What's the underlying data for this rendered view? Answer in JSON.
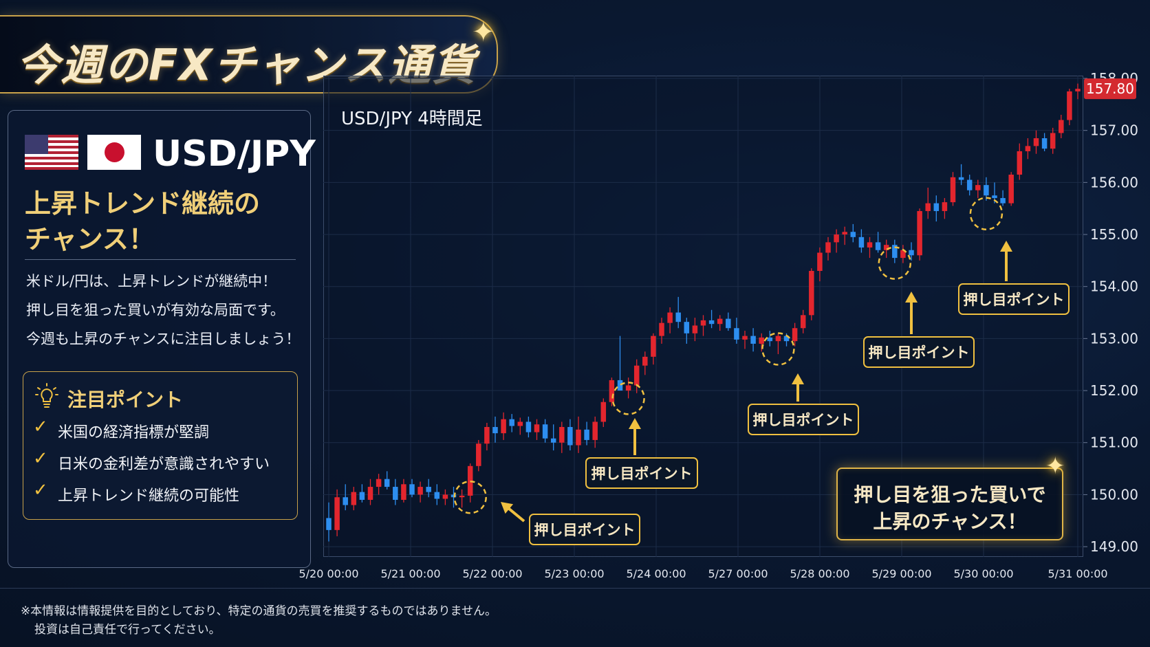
{
  "page": {
    "title": "今週のFXチャンス通貨"
  },
  "panel": {
    "pair": "USD/JPY",
    "headline_line1": "上昇トレンド継続の",
    "headline_line2": "チャンス！",
    "description": [
      "米ドル/円は、上昇トレンドが継続中！",
      "押し目を狙った買いが有効な局面です。",
      "今週も上昇のチャンスに注目しましょう！"
    ],
    "focus": {
      "title": "注目ポイント",
      "items": [
        "米国の経済指標が堅調",
        "日米の金利差が意識されやすい",
        "上昇トレンド継続の可能性"
      ]
    }
  },
  "callout": {
    "line1": "押し目を狙った買いで",
    "line2": "上昇のチャンス！"
  },
  "disclaimer": {
    "line1": "※本情報は情報提供を目的としており、特定の通貨の売買を推奨するものではありません。",
    "line2": "投資は自己責任で行ってください。"
  },
  "colors": {
    "up": "#e3262e",
    "down": "#2d8ef0",
    "gold": "#f0c040",
    "price_tag": "#d42a30"
  },
  "chart_data": {
    "type": "candlestick",
    "title": "USD/JPY 4時間足",
    "ylim": [
      148.75,
      158.0
    ],
    "yticks": [
      "158.00",
      "157.00",
      "156.00",
      "155.00",
      "154.00",
      "153.00",
      "152.00",
      "151.00",
      "150.00",
      "149.00"
    ],
    "ytick_values": [
      158,
      157,
      156,
      155,
      154,
      153,
      152,
      151,
      150,
      149
    ],
    "xticks": [
      "5/20 00:00",
      "5/21 00:00",
      "5/22 00:00",
      "5/23 00:00",
      "5/24 00:00",
      "5/27 00:00",
      "5/28 00:00",
      "5/29 00:00",
      "5/30 00:00",
      "5/31 00:00"
    ],
    "current_price": "157.80",
    "grid": true,
    "ohlc": [
      [
        149.55,
        149.85,
        149.1,
        149.32
      ],
      [
        149.32,
        150.1,
        149.2,
        149.95
      ],
      [
        149.95,
        150.2,
        149.7,
        149.8
      ],
      [
        149.8,
        150.15,
        149.7,
        150.05
      ],
      [
        150.05,
        150.2,
        149.85,
        149.9
      ],
      [
        149.9,
        150.3,
        149.8,
        150.15
      ],
      [
        150.15,
        150.4,
        150.0,
        150.3
      ],
      [
        150.3,
        150.45,
        150.1,
        150.15
      ],
      [
        150.15,
        150.3,
        149.8,
        149.9
      ],
      [
        149.9,
        150.3,
        149.85,
        150.2
      ],
      [
        150.2,
        150.3,
        149.95,
        150.0
      ],
      [
        150.0,
        150.25,
        149.85,
        150.15
      ],
      [
        150.15,
        150.3,
        149.95,
        150.05
      ],
      [
        150.05,
        150.2,
        149.8,
        149.92
      ],
      [
        149.92,
        150.1,
        149.8,
        150.0
      ],
      [
        150.0,
        150.15,
        149.75,
        149.95
      ],
      [
        149.95,
        150.1,
        149.75,
        149.98
      ],
      [
        149.98,
        150.6,
        149.85,
        150.55
      ],
      [
        150.55,
        151.05,
        150.45,
        150.98
      ],
      [
        150.98,
        151.38,
        150.85,
        151.3
      ],
      [
        151.3,
        151.5,
        151.0,
        151.18
      ],
      [
        151.18,
        151.58,
        151.05,
        151.45
      ],
      [
        151.45,
        151.55,
        151.2,
        151.32
      ],
      [
        151.32,
        151.48,
        151.15,
        151.4
      ],
      [
        151.4,
        151.5,
        151.1,
        151.2
      ],
      [
        151.2,
        151.45,
        151.05,
        151.35
      ],
      [
        151.35,
        151.45,
        151.0,
        151.08
      ],
      [
        151.08,
        151.35,
        150.85,
        151.0
      ],
      [
        151.0,
        151.4,
        150.8,
        151.3
      ],
      [
        151.3,
        151.45,
        150.85,
        150.95
      ],
      [
        150.95,
        151.5,
        150.8,
        151.25
      ],
      [
        151.25,
        151.4,
        150.95,
        151.05
      ],
      [
        151.05,
        151.5,
        150.9,
        151.4
      ],
      [
        151.4,
        151.85,
        151.3,
        151.78
      ],
      [
        151.78,
        152.25,
        151.7,
        152.2
      ],
      [
        152.2,
        153.05,
        152.0,
        152.0
      ],
      [
        152.0,
        152.25,
        151.85,
        152.1
      ],
      [
        152.1,
        152.6,
        151.95,
        152.48
      ],
      [
        152.48,
        152.75,
        152.3,
        152.65
      ],
      [
        152.65,
        153.1,
        152.5,
        153.05
      ],
      [
        153.05,
        153.4,
        152.9,
        153.3
      ],
      [
        153.3,
        153.6,
        153.1,
        153.5
      ],
      [
        153.5,
        153.8,
        153.2,
        153.32
      ],
      [
        153.32,
        153.4,
        152.9,
        153.1
      ],
      [
        153.1,
        153.4,
        152.95,
        153.25
      ],
      [
        153.25,
        153.45,
        153.05,
        153.35
      ],
      [
        153.35,
        153.55,
        153.2,
        153.28
      ],
      [
        153.28,
        153.45,
        153.15,
        153.38
      ],
      [
        153.38,
        153.5,
        153.15,
        153.2
      ],
      [
        153.2,
        153.4,
        152.9,
        152.98
      ],
      [
        152.98,
        153.15,
        152.8,
        153.05
      ],
      [
        153.05,
        153.2,
        152.75,
        152.9
      ],
      [
        152.9,
        153.1,
        152.75,
        153.02
      ],
      [
        153.02,
        153.15,
        152.85,
        152.95
      ],
      [
        152.95,
        153.1,
        152.7,
        153.05
      ],
      [
        153.05,
        153.1,
        152.85,
        152.95
      ],
      [
        152.95,
        153.3,
        152.85,
        153.2
      ],
      [
        153.2,
        153.55,
        153.1,
        153.45
      ],
      [
        153.45,
        154.35,
        153.35,
        154.3
      ],
      [
        154.3,
        154.75,
        154.1,
        154.65
      ],
      [
        154.65,
        154.95,
        154.5,
        154.85
      ],
      [
        154.85,
        155.1,
        154.65,
        155.0
      ],
      [
        155.0,
        155.15,
        154.8,
        155.05
      ],
      [
        155.05,
        155.2,
        154.85,
        154.95
      ],
      [
        154.95,
        155.1,
        154.65,
        154.75
      ],
      [
        154.75,
        154.95,
        154.55,
        154.85
      ],
      [
        154.85,
        155.05,
        154.65,
        154.7
      ],
      [
        154.7,
        154.9,
        154.55,
        154.8
      ],
      [
        154.8,
        154.9,
        154.45,
        154.55
      ],
      [
        154.55,
        154.8,
        154.45,
        154.7
      ],
      [
        154.7,
        154.85,
        154.5,
        154.6
      ],
      [
        154.6,
        155.5,
        154.5,
        155.45
      ],
      [
        155.45,
        155.9,
        155.3,
        155.6
      ],
      [
        155.6,
        155.75,
        155.25,
        155.45
      ],
      [
        155.45,
        155.7,
        155.3,
        155.62
      ],
      [
        155.62,
        156.2,
        155.55,
        156.1
      ],
      [
        156.1,
        156.35,
        155.95,
        156.05
      ],
      [
        156.05,
        156.15,
        155.75,
        155.85
      ],
      [
        155.85,
        156.05,
        155.7,
        155.95
      ],
      [
        155.95,
        156.1,
        155.65,
        155.75
      ],
      [
        155.75,
        156.0,
        155.6,
        155.7
      ],
      [
        155.7,
        155.85,
        155.55,
        155.6
      ],
      [
        155.6,
        156.2,
        155.55,
        156.15
      ],
      [
        156.15,
        156.75,
        156.05,
        156.6
      ],
      [
        156.6,
        156.85,
        156.45,
        156.7
      ],
      [
        156.7,
        157.0,
        156.55,
        156.85
      ],
      [
        156.85,
        156.95,
        156.6,
        156.65
      ],
      [
        156.65,
        157.05,
        156.55,
        156.95
      ],
      [
        156.95,
        157.3,
        156.85,
        157.2
      ],
      [
        157.2,
        157.8,
        157.1,
        157.75
      ],
      [
        157.75,
        157.9,
        157.6,
        157.8
      ]
    ],
    "annotations": [
      {
        "label": "押し目ポイント",
        "price": 149.95,
        "candle": 17
      },
      {
        "label": "押し目ポイント",
        "price": 151.85,
        "candle": 36
      },
      {
        "label": "押し目ポイント",
        "price": 152.8,
        "candle": 54
      },
      {
        "label": "押し目ポイント",
        "price": 154.45,
        "candle": 68
      },
      {
        "label": "押し目ポイント",
        "price": 155.4,
        "candle": 79
      }
    ]
  }
}
